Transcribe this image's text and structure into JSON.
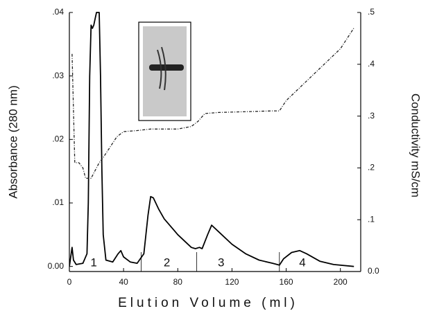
{
  "chart_data": {
    "type": "line",
    "x_label": "Elution Volume (ml)",
    "y_label": "Absorbance (280 nm)",
    "y2_label": "Conductivity mS/cm",
    "xlim": [
      0,
      215
    ],
    "xticks": [
      0,
      40,
      80,
      120,
      160,
      200
    ],
    "ylim": [
      -0.0008,
      0.04
    ],
    "yticks": [
      {
        "value": 0,
        "label": "0.00"
      },
      {
        "value": 0.01,
        "label": ".01"
      },
      {
        "value": 0.02,
        "label": ".02"
      },
      {
        "value": 0.03,
        "label": ".03"
      },
      {
        "value": 0.04,
        "label": ".04"
      }
    ],
    "y2lim": [
      0,
      0.5
    ],
    "y2ticks": [
      {
        "value": 0,
        "label": "0.0"
      },
      {
        "value": 0.1,
        "label": ".1"
      },
      {
        "value": 0.2,
        "label": ".2"
      },
      {
        "value": 0.3,
        "label": ".3"
      },
      {
        "value": 0.4,
        "label": ".4"
      },
      {
        "value": 0.5,
        "label": ".5"
      }
    ],
    "annotations": [
      "1",
      "2",
      "3",
      "4"
    ],
    "series": [
      {
        "color": "#000000",
        "style": "solid",
        "x": [
          0,
          2,
          3,
          5,
          10,
          13,
          14,
          15,
          16,
          17,
          18,
          19,
          20,
          22,
          23,
          24,
          25,
          27,
          32,
          36,
          38,
          40,
          45,
          50,
          55,
          58,
          60,
          62,
          66,
          70,
          80,
          90,
          93,
          96,
          98,
          102,
          105,
          110,
          120,
          130,
          140,
          150,
          155,
          158,
          164,
          170,
          175,
          185,
          195,
          210
        ],
        "values": [
          0,
          0.003,
          0.001,
          0.0003,
          0.0005,
          0.002,
          0.01,
          0.03,
          0.038,
          0.0375,
          0.038,
          0.039,
          0.04,
          0.04,
          0.03,
          0.015,
          0.005,
          0.001,
          0.0007,
          0.002,
          0.0025,
          0.0015,
          0.0007,
          0.0005,
          0.002,
          0.008,
          0.011,
          0.0108,
          0.009,
          0.0075,
          0.005,
          0.003,
          0.0028,
          0.003,
          0.0028,
          0.005,
          0.0065,
          0.0055,
          0.0035,
          0.002,
          0.001,
          0.0005,
          0.0002,
          0.0012,
          0.0022,
          0.0025,
          0.002,
          0.0008,
          0.0003,
          0
        ]
      },
      {
        "color": "#222222",
        "style": "dashdot",
        "axis": "y2",
        "x": [
          2,
          4,
          7,
          10,
          12,
          16,
          18,
          22,
          25,
          30,
          35,
          40,
          50,
          60,
          80,
          90,
          95,
          100,
          110,
          150,
          155,
          160,
          180,
          200,
          210
        ],
        "values": [
          0.42,
          0.21,
          0.21,
          0.2,
          0.18,
          0.18,
          0.19,
          0.21,
          0.22,
          0.24,
          0.26,
          0.27,
          0.272,
          0.275,
          0.275,
          0.28,
          0.29,
          0.305,
          0.307,
          0.31,
          0.31,
          0.33,
          0.38,
          0.43,
          0.47
        ]
      }
    ]
  }
}
